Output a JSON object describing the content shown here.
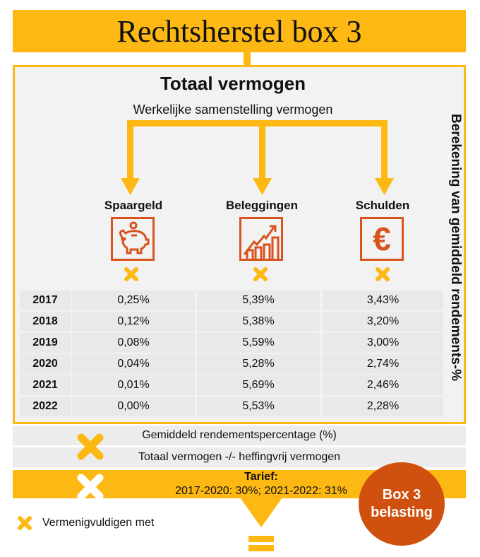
{
  "title": "Rechtsherstel box 3",
  "main": {
    "heading": "Totaal vermogen",
    "subheading": "Werkelijke samenstelling vermogen",
    "side_label": "Berekening van gemiddeld rendements-%",
    "columns": [
      {
        "label": "Spaargeld",
        "icon": "piggy-bank-icon"
      },
      {
        "label": "Beleggingen",
        "icon": "growth-chart-icon"
      },
      {
        "label": "Schulden",
        "icon": "euro-icon"
      }
    ],
    "rows": [
      {
        "year": "2017",
        "values": [
          "0,25%",
          "5,39%",
          "3,43%"
        ]
      },
      {
        "year": "2018",
        "values": [
          "0,12%",
          "5,38%",
          "3,20%"
        ]
      },
      {
        "year": "2019",
        "values": [
          "0,08%",
          "5,59%",
          "3,00%"
        ]
      },
      {
        "year": "2020",
        "values": [
          "0,04%",
          "5,28%",
          "2,74%"
        ]
      },
      {
        "year": "2021",
        "values": [
          "0,01%",
          "5,69%",
          "2,46%"
        ]
      },
      {
        "year": "2022",
        "values": [
          "0,00%",
          "5,53%",
          "2,28%"
        ]
      }
    ]
  },
  "calc": {
    "row1": "Gemiddeld rendementspercentage (%)",
    "row2": "Totaal vermogen -/- heffingvrij vermogen",
    "tarief_label": "Tarief:",
    "tarief_value": "2017-2020: 30%; 2021-2022: 31%"
  },
  "legend": {
    "label": "Vermenigvuldigen met",
    "icon": "multiply-icon"
  },
  "result": {
    "line1": "Box 3",
    "line2": "belasting"
  },
  "colors": {
    "accent": "#FDB813",
    "orange": "#D9531E",
    "panel": "#f2f2f2"
  }
}
